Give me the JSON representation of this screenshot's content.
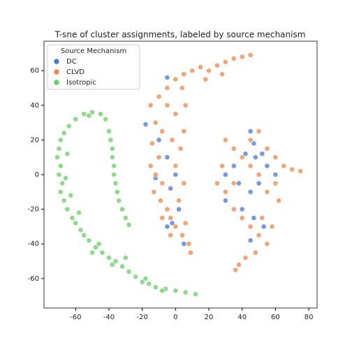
{
  "chart_data": {
    "type": "scatter",
    "title": "T-sne of cluster assignments, labeled by source mechanism",
    "legend_title": "Source Mechanism",
    "legend": "upper left",
    "xlim": [
      -79,
      85
    ],
    "ylim": [
      -77,
      77
    ],
    "xticks": [
      -60,
      -40,
      -20,
      0,
      20,
      40,
      60,
      80
    ],
    "yticks": [
      -60,
      -40,
      -20,
      0,
      20,
      40,
      60
    ],
    "series": [
      {
        "name": "DC",
        "color": "#4878d0",
        "x": [
          -18,
          -5,
          -10,
          -5,
          -12,
          -3,
          2,
          -5,
          5,
          -2,
          0,
          45,
          47,
          48,
          42,
          35,
          38,
          45,
          50,
          30,
          40,
          47,
          53,
          45,
          55,
          60,
          52,
          30
        ],
        "values": [
          29,
          56,
          20,
          10,
          -2,
          -8,
          -20,
          -30,
          -40,
          -28,
          0,
          25,
          18,
          10,
          12,
          5,
          -5,
          -10,
          -5,
          -15,
          -20,
          -25,
          -30,
          -38,
          5,
          0,
          12,
          0
        ]
      },
      {
        "name": "CLVD",
        "color": "#ee854a",
        "x": [
          -15,
          -10,
          -5,
          0,
          5,
          10,
          15,
          20,
          25,
          30,
          35,
          40,
          45,
          28,
          18,
          -12,
          -8,
          -14,
          -10,
          -15,
          -12,
          -8,
          -13,
          -9,
          -5,
          -3,
          0,
          4,
          8,
          6,
          2,
          5,
          0,
          3,
          -2,
          5,
          0,
          -5,
          6,
          4,
          -8,
          -3,
          9,
          30,
          35,
          40,
          45,
          50,
          55,
          60,
          65,
          70,
          75,
          28,
          25,
          30,
          35,
          40,
          45,
          50,
          55,
          48,
          42,
          38,
          36,
          55,
          60,
          62,
          50,
          45,
          35,
          52,
          58
        ],
        "values": [
          40,
          45,
          50,
          55,
          58,
          60,
          62,
          60,
          63,
          65,
          67,
          68,
          69,
          58,
          55,
          30,
          25,
          18,
          10,
          5,
          0,
          -5,
          -10,
          -15,
          -20,
          -25,
          -30,
          -35,
          -40,
          -28,
          -15,
          -5,
          5,
          15,
          20,
          25,
          35,
          40,
          40,
          50,
          -25,
          -35,
          -45,
          20,
          15,
          10,
          20,
          25,
          15,
          10,
          5,
          3,
          2,
          5,
          -5,
          -10,
          -20,
          -25,
          -30,
          -35,
          -40,
          -45,
          -48,
          -52,
          -55,
          -10,
          -5,
          -15,
          0,
          5,
          -5,
          -25,
          -30
        ]
      },
      {
        "name": "Isotropic",
        "color": "#6acc64",
        "x": [
          -55,
          -50,
          -45,
          -42,
          -60,
          -64,
          -67,
          -69,
          -70,
          -71,
          -69,
          -70,
          -68,
          -69,
          -67,
          -65,
          -62,
          -60,
          -57,
          -55,
          -52,
          -48,
          -44,
          -40,
          -36,
          -32,
          -28,
          -24,
          -20,
          -16,
          -12,
          -6,
          0,
          6,
          12,
          -40,
          -39,
          -38,
          -38,
          -37,
          -37,
          -36,
          -35,
          -34,
          -32,
          -30,
          -28,
          -46,
          -30,
          -50,
          -58,
          -66,
          -65,
          -52,
          -38,
          -18,
          -8,
          -63
        ],
        "values": [
          35,
          36,
          35,
          32,
          32,
          28,
          24,
          20,
          15,
          10,
          5,
          0,
          -5,
          -10,
          -15,
          -20,
          -25,
          -28,
          -32,
          -35,
          -38,
          -42,
          -45,
          -48,
          -50,
          -53,
          -56,
          -59,
          -62,
          -63,
          -65,
          -66,
          -67,
          -68,
          -69,
          25,
          20,
          15,
          10,
          5,
          0,
          -5,
          -10,
          -15,
          -20,
          -25,
          -29,
          -40,
          -48,
          -45,
          -22,
          -2,
          12,
          34,
          -52,
          -60,
          -67,
          -12
        ]
      }
    ]
  }
}
